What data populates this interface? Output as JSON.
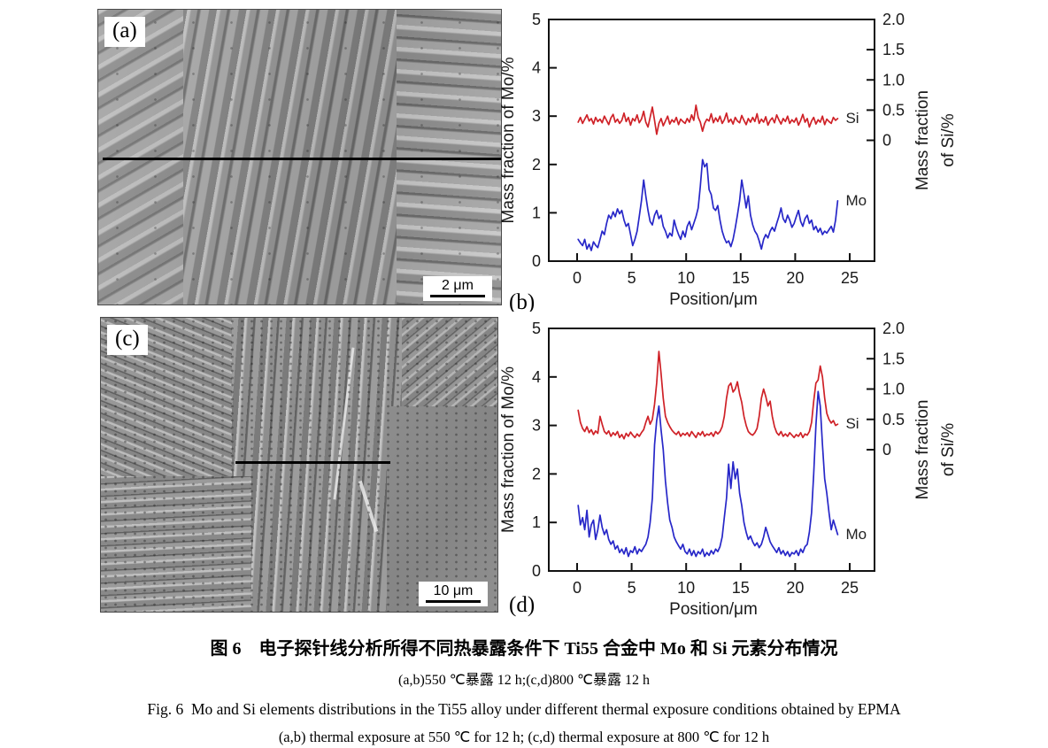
{
  "panels": {
    "a": {
      "label": "(a)",
      "scale_bar": "2 μm"
    },
    "c": {
      "label": "(c)",
      "scale_bar": "10 μm"
    }
  },
  "caption": {
    "zh_title": "图 6　电子探针线分析所得不同热暴露条件下 Ti55 合金中 Mo 和 Si 元素分布情况",
    "zh_sub": "(a,b)550 ℃暴露 12 h;(c,d)800 ℃暴露 12 h",
    "en_title": "Fig. 6  Mo and Si elements distributions in the Ti55 alloy under different thermal exposure conditions obtained by EPMA",
    "en_sub": "(a,b) thermal exposure at 550 ℃ for 12 h; (c,d) thermal exposure at 800 ℃ for 12 h"
  },
  "chart_data": [
    {
      "id": "b",
      "type": "line",
      "panel_label": "(b)",
      "xlabel": "Position/μm",
      "ylabel_left": "Mass fraction of Mo/%",
      "ylabel_right_lines": [
        "Mass fraction",
        "of Si/%"
      ],
      "xlim": [
        -2.6,
        27.3
      ],
      "xticks": [
        0,
        5,
        10,
        15,
        20,
        25
      ],
      "ylim_left": [
        0,
        5
      ],
      "yticks_left": [
        0,
        1,
        2,
        3,
        4,
        5
      ],
      "yticks_right_values": [
        0,
        0.5,
        1,
        1.5,
        2
      ],
      "yticks_right_labels": [
        "0",
        "0.5",
        "1.0",
        "1.5",
        "2.0"
      ],
      "right_axis": {
        "si_zero_at_mo": 2.5,
        "si_full_at_mo": 5.0,
        "si_full_value": 2.0
      },
      "legend_position": "end-of-line",
      "grid": false,
      "series": [
        {
          "name": "Si",
          "axis": "right",
          "color": "#cf2127",
          "x_start": 0.1,
          "x_step": 0.2,
          "values": [
            0.3,
            0.38,
            0.28,
            0.35,
            0.42,
            0.32,
            0.36,
            0.27,
            0.38,
            0.31,
            0.35,
            0.29,
            0.4,
            0.33,
            0.26,
            0.37,
            0.43,
            0.3,
            0.35,
            0.28,
            0.33,
            0.45,
            0.31,
            0.38,
            0.25,
            0.36,
            0.32,
            0.42,
            0.29,
            0.35,
            0.48,
            0.3,
            0.22,
            0.38,
            0.55,
            0.33,
            0.1,
            0.28,
            0.36,
            0.24,
            0.32,
            0.4,
            0.27,
            0.34,
            0.3,
            0.38,
            0.26,
            0.35,
            0.31,
            0.28,
            0.36,
            0.3,
            0.42,
            0.33,
            0.58,
            0.38,
            0.3,
            0.15,
            0.28,
            0.35,
            0.32,
            0.44,
            0.29,
            0.37,
            0.31,
            0.4,
            0.28,
            0.34,
            0.45,
            0.3,
            0.35,
            0.27,
            0.38,
            0.32,
            0.29,
            0.41,
            0.33,
            0.26,
            0.36,
            0.3,
            0.38,
            0.31,
            0.44,
            0.28,
            0.35,
            0.3,
            0.39,
            0.25,
            0.33,
            0.37,
            0.29,
            0.42,
            0.34,
            0.27,
            0.36,
            0.31,
            0.4,
            0.28,
            0.34,
            0.3,
            0.37,
            0.25,
            0.33,
            0.43,
            0.3,
            0.36,
            0.22,
            0.32,
            0.38,
            0.27,
            0.34,
            0.3,
            0.4,
            0.26,
            0.35,
            0.31,
            0.28,
            0.38,
            0.33,
            0.36
          ]
        },
        {
          "name": "Mo",
          "axis": "left",
          "color": "#2727c8",
          "x_start": 0.1,
          "x_step": 0.2,
          "values": [
            0.45,
            0.38,
            0.32,
            0.45,
            0.25,
            0.35,
            0.22,
            0.4,
            0.33,
            0.28,
            0.45,
            0.62,
            0.55,
            0.78,
            0.95,
            0.88,
            1.02,
            0.92,
            1.08,
            0.98,
            1.05,
            0.85,
            0.72,
            0.78,
            0.55,
            0.32,
            0.45,
            0.62,
            0.92,
            1.25,
            1.68,
            1.35,
            1.05,
            0.82,
            0.75,
            0.95,
            1.05,
            0.88,
            0.95,
            0.72,
            0.62,
            0.48,
            0.58,
            0.52,
            0.85,
            0.68,
            0.55,
            0.45,
            0.62,
            0.5,
            0.72,
            0.82,
            0.65,
            0.78,
            0.92,
            1.1,
            1.55,
            2.1,
            1.95,
            2.02,
            1.48,
            1.38,
            1.1,
            1.05,
            1.15,
            0.85,
            0.62,
            0.48,
            0.38,
            0.42,
            0.3,
            0.45,
            0.68,
            0.95,
            1.25,
            1.68,
            1.4,
            1.1,
            1.35,
            0.95,
            0.75,
            0.62,
            0.55,
            0.42,
            0.25,
            0.45,
            0.55,
            0.48,
            0.62,
            0.7,
            0.62,
            0.78,
            0.92,
            1.1,
            0.88,
            0.8,
            0.95,
            0.85,
            0.7,
            0.78,
            0.92,
            1.05,
            0.82,
            0.72,
            0.88,
            0.95,
            0.78,
            0.85,
            0.65,
            0.72,
            0.6,
            0.68,
            0.55,
            0.62,
            0.58,
            0.65,
            0.72,
            0.6,
            0.85,
            1.25
          ]
        }
      ]
    },
    {
      "id": "d",
      "type": "line",
      "panel_label": "(d)",
      "xlabel": "Position/μm",
      "ylabel_left": "Mass fraction of Mo/%",
      "ylabel_right_lines": [
        "Mass fraction",
        "of Si/%"
      ],
      "xlim": [
        -2.6,
        27.3
      ],
      "xticks": [
        0,
        5,
        10,
        15,
        20,
        25
      ],
      "ylim_left": [
        0,
        5
      ],
      "yticks_left": [
        0,
        1,
        2,
        3,
        4,
        5
      ],
      "yticks_right_values": [
        0,
        0.5,
        1,
        1.5,
        2
      ],
      "yticks_right_labels": [
        "0",
        "0.5",
        "1.0",
        "1.5",
        "2.0"
      ],
      "right_axis": {
        "si_zero_at_mo": 2.5,
        "si_full_at_mo": 5.0,
        "si_full_value": 2.0
      },
      "legend_position": "end-of-line",
      "grid": false,
      "series": [
        {
          "name": "Si",
          "axis": "right",
          "color": "#cf2127",
          "x_start": 0.1,
          "x_step": 0.2,
          "values": [
            0.65,
            0.45,
            0.35,
            0.3,
            0.38,
            0.28,
            0.33,
            0.25,
            0.31,
            0.27,
            0.55,
            0.42,
            0.3,
            0.26,
            0.31,
            0.22,
            0.28,
            0.24,
            0.3,
            0.2,
            0.25,
            0.18,
            0.27,
            0.22,
            0.29,
            0.24,
            0.2,
            0.26,
            0.22,
            0.28,
            0.33,
            0.45,
            0.55,
            0.42,
            0.5,
            0.75,
            1.1,
            1.62,
            1.25,
            0.85,
            0.55,
            0.45,
            0.38,
            0.32,
            0.28,
            0.25,
            0.3,
            0.22,
            0.27,
            0.24,
            0.28,
            0.22,
            0.3,
            0.25,
            0.2,
            0.28,
            0.24,
            0.3,
            0.22,
            0.26,
            0.24,
            0.28,
            0.22,
            0.3,
            0.26,
            0.3,
            0.38,
            0.55,
            0.85,
            1.05,
            1.1,
            0.95,
            1.0,
            1.12,
            0.92,
            0.78,
            0.55,
            0.4,
            0.3,
            0.26,
            0.24,
            0.28,
            0.35,
            0.55,
            0.85,
            1.0,
            0.88,
            0.72,
            0.8,
            0.55,
            0.38,
            0.28,
            0.24,
            0.3,
            0.22,
            0.26,
            0.22,
            0.28,
            0.24,
            0.2,
            0.25,
            0.22,
            0.28,
            0.2,
            0.26,
            0.24,
            0.3,
            0.45,
            0.8,
            1.1,
            1.15,
            1.38,
            1.2,
            0.85,
            0.6,
            0.5,
            0.44,
            0.48,
            0.4,
            0.42
          ]
        },
        {
          "name": "Mo",
          "axis": "left",
          "color": "#2727c8",
          "x_start": 0.1,
          "x_step": 0.2,
          "values": [
            1.35,
            0.95,
            1.1,
            0.85,
            1.25,
            0.7,
            0.95,
            1.05,
            0.65,
            0.85,
            1.15,
            0.9,
            0.75,
            0.85,
            0.65,
            0.55,
            0.62,
            0.45,
            0.52,
            0.38,
            0.45,
            0.35,
            0.48,
            0.3,
            0.42,
            0.38,
            0.5,
            0.35,
            0.45,
            0.4,
            0.48,
            0.55,
            0.7,
            1.0,
            1.5,
            2.6,
            3.1,
            3.4,
            2.9,
            2.5,
            1.85,
            1.4,
            1.05,
            0.9,
            0.7,
            0.6,
            0.52,
            0.45,
            0.55,
            0.4,
            0.35,
            0.45,
            0.32,
            0.42,
            0.3,
            0.4,
            0.35,
            0.45,
            0.3,
            0.38,
            0.32,
            0.42,
            0.35,
            0.45,
            0.4,
            0.5,
            0.7,
            1.1,
            1.5,
            2.2,
            1.7,
            2.25,
            1.9,
            2.1,
            1.6,
            1.35,
            1.0,
            0.8,
            0.65,
            0.72,
            0.6,
            0.52,
            0.58,
            0.48,
            0.55,
            0.7,
            0.9,
            0.75,
            0.6,
            0.52,
            0.45,
            0.38,
            0.48,
            0.35,
            0.42,
            0.32,
            0.4,
            0.3,
            0.38,
            0.35,
            0.42,
            0.32,
            0.45,
            0.38,
            0.5,
            0.55,
            0.8,
            1.2,
            2.0,
            3.0,
            3.7,
            3.4,
            2.6,
            1.9,
            1.6,
            1.2,
            0.85,
            1.05,
            0.9,
            0.75
          ]
        }
      ]
    }
  ]
}
